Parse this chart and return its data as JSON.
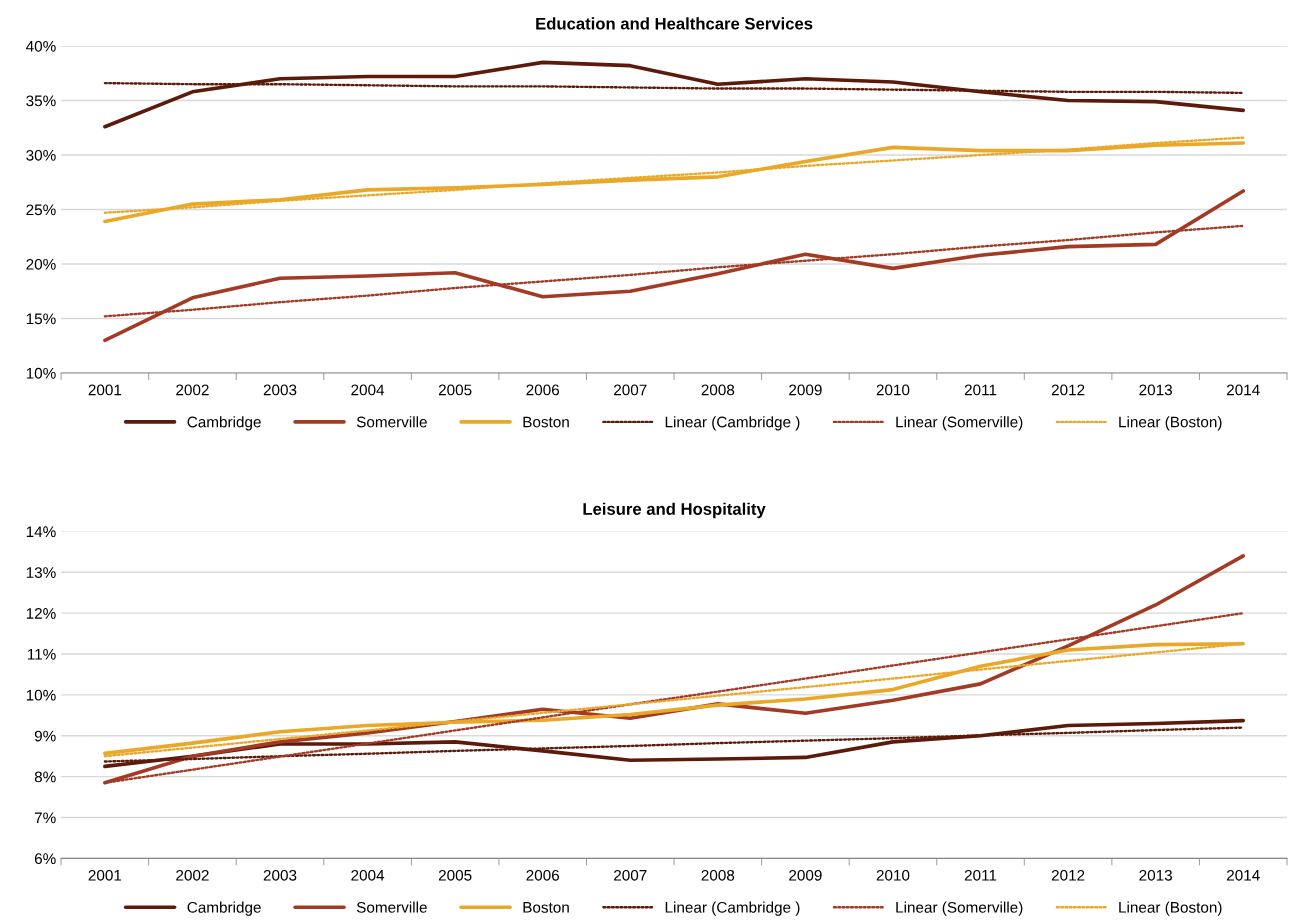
{
  "chart_data": [
    {
      "type": "line",
      "title": "Education and Healthcare Services",
      "categories": [
        "2001",
        "2002",
        "2003",
        "2004",
        "2005",
        "2006",
        "2007",
        "2008",
        "2009",
        "2010",
        "2011",
        "2012",
        "2013",
        "2014"
      ],
      "ylim": [
        10,
        40
      ],
      "yticks": [
        {
          "value": 10,
          "label": "10%"
        },
        {
          "value": 15,
          "label": "15%"
        },
        {
          "value": 20,
          "label": "20%"
        },
        {
          "value": 25,
          "label": "25%"
        },
        {
          "value": 30,
          "label": "30%"
        },
        {
          "value": 35,
          "label": "35%"
        },
        {
          "value": 40,
          "label": "40%"
        }
      ],
      "grid": "y",
      "legend": "bottom",
      "marker": "none",
      "series": [
        {
          "name": "Cambridge",
          "color": "#5c1a0b",
          "line_style": "solid",
          "values": [
            32.6,
            35.8,
            37.0,
            37.2,
            37.2,
            38.5,
            38.2,
            36.5,
            37.0,
            36.7,
            35.8,
            35.0,
            34.9,
            34.1
          ]
        },
        {
          "name": "Somerville",
          "color": "#a33a24",
          "line_style": "solid",
          "values": [
            13.0,
            16.9,
            18.7,
            18.9,
            19.2,
            17.0,
            17.5,
            19.1,
            20.9,
            19.6,
            20.8,
            21.6,
            21.8,
            26.7
          ]
        },
        {
          "name": "Boston",
          "color": "#eaa829",
          "line_style": "solid",
          "values": [
            23.9,
            25.5,
            25.9,
            26.8,
            27.0,
            27.3,
            27.7,
            28.0,
            29.4,
            30.7,
            30.4,
            30.4,
            30.9,
            31.1
          ]
        },
        {
          "name": "Linear (Cambridge )",
          "color": "#5c1a0b",
          "line_style": "dotted",
          "values": [
            36.6,
            36.5,
            36.5,
            36.4,
            36.3,
            36.3,
            36.2,
            36.1,
            36.1,
            36.0,
            35.9,
            35.8,
            35.8,
            35.7
          ]
        },
        {
          "name": "Linear (Somerville)",
          "color": "#a33a24",
          "line_style": "dotted",
          "values": [
            15.2,
            15.8,
            16.5,
            17.1,
            17.8,
            18.4,
            19.0,
            19.7,
            20.3,
            20.9,
            21.6,
            22.2,
            22.9,
            23.5
          ]
        },
        {
          "name": "Linear (Boston)",
          "color": "#eaa829",
          "line_style": "dotted",
          "values": [
            24.7,
            25.2,
            25.8,
            26.3,
            26.8,
            27.4,
            27.9,
            28.4,
            29.0,
            29.5,
            30.0,
            30.5,
            31.1,
            31.6
          ]
        }
      ]
    },
    {
      "type": "line",
      "title": "Leisure and Hospitality",
      "categories": [
        "2001",
        "2002",
        "2003",
        "2004",
        "2005",
        "2006",
        "2007",
        "2008",
        "2009",
        "2010",
        "2011",
        "2012",
        "2013",
        "2014"
      ],
      "ylim": [
        6,
        14
      ],
      "yticks": [
        {
          "value": 6,
          "label": "6%"
        },
        {
          "value": 7,
          "label": "7%"
        },
        {
          "value": 8,
          "label": "8%"
        },
        {
          "value": 9,
          "label": "9%"
        },
        {
          "value": 10,
          "label": "10%"
        },
        {
          "value": 11,
          "label": "11%"
        },
        {
          "value": 12,
          "label": "12%"
        },
        {
          "value": 13,
          "label": "13%"
        },
        {
          "value": 14,
          "label": "14%"
        }
      ],
      "grid": "y",
      "legend": "bottom",
      "marker": "none",
      "series": [
        {
          "name": "Cambridge",
          "color": "#5c1a0b",
          "line_style": "solid",
          "values": [
            8.25,
            8.5,
            8.8,
            8.8,
            8.85,
            8.63,
            8.4,
            8.43,
            8.47,
            8.85,
            9.0,
            9.25,
            9.3,
            9.37
          ]
        },
        {
          "name": "Somerville",
          "color": "#a33a24",
          "line_style": "solid",
          "values": [
            7.85,
            8.5,
            8.85,
            9.07,
            9.35,
            9.65,
            9.43,
            9.78,
            9.55,
            9.87,
            10.27,
            11.2,
            12.2,
            13.4
          ]
        },
        {
          "name": "Boston",
          "color": "#eaa829",
          "line_style": "solid",
          "values": [
            8.57,
            8.82,
            9.1,
            9.25,
            9.33,
            9.38,
            9.52,
            9.75,
            9.9,
            10.13,
            10.7,
            11.1,
            11.23,
            11.25
          ]
        },
        {
          "name": "Linear (Cambridge )",
          "color": "#5c1a0b",
          "line_style": "dotted",
          "values": [
            8.37,
            8.43,
            8.5,
            8.56,
            8.63,
            8.69,
            8.75,
            8.82,
            8.88,
            8.94,
            9.01,
            9.07,
            9.14,
            9.2
          ]
        },
        {
          "name": "Linear (Somerville)",
          "color": "#a33a24",
          "line_style": "dotted",
          "values": [
            7.85,
            8.17,
            8.49,
            8.81,
            9.13,
            9.45,
            9.77,
            10.08,
            10.4,
            10.72,
            11.04,
            11.36,
            11.68,
            12.0
          ]
        },
        {
          "name": "Linear (Boston)",
          "color": "#eaa829",
          "line_style": "dotted",
          "values": [
            8.5,
            8.71,
            8.92,
            9.13,
            9.35,
            9.56,
            9.77,
            9.98,
            10.19,
            10.4,
            10.62,
            10.83,
            11.04,
            11.25
          ]
        }
      ]
    }
  ]
}
